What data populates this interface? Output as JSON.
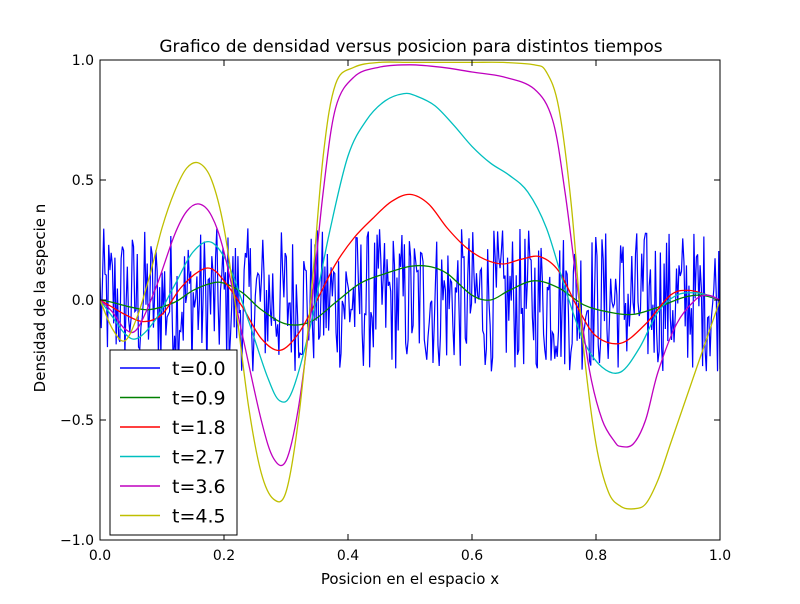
{
  "chart_data": {
    "type": "line",
    "title": "Grafico de densidad versus posicion para distintos tiempos",
    "xlabel": "Posicion en el espacio x",
    "ylabel": "Densidad de la especie n",
    "xlim": [
      0.0,
      1.0
    ],
    "ylim": [
      -1.0,
      1.0
    ],
    "xticks": [
      "0.0",
      "0.2",
      "0.4",
      "0.6",
      "0.8",
      "1.0"
    ],
    "yticks": [
      "1.0",
      "0.5",
      "0.0",
      "−0.5",
      "−1.0"
    ],
    "grid": false,
    "legend_position": "lower-left",
    "noise_series": {
      "name": "t=0.0",
      "color": "#0000ff",
      "x_range": [
        0.0,
        1.0
      ],
      "points": 500,
      "amplitude_range": [
        -0.3,
        0.3
      ]
    },
    "series": [
      {
        "name": "t=0.9",
        "color": "#008000",
        "x": [
          0.0,
          0.02,
          0.05,
          0.08,
          0.12,
          0.15,
          0.18,
          0.2,
          0.23,
          0.26,
          0.3,
          0.34,
          0.38,
          0.42,
          0.46,
          0.5,
          0.53,
          0.56,
          0.6,
          0.63,
          0.66,
          0.7,
          0.74,
          0.78,
          0.82,
          0.86,
          0.9,
          0.94,
          0.97,
          1.0
        ],
        "values": [
          0.0,
          -0.01,
          -0.03,
          -0.04,
          -0.01,
          0.04,
          0.07,
          0.07,
          0.03,
          -0.04,
          -0.1,
          -0.09,
          -0.01,
          0.07,
          0.11,
          0.14,
          0.14,
          0.11,
          0.02,
          0.0,
          0.04,
          0.08,
          0.05,
          -0.02,
          -0.05,
          -0.06,
          -0.03,
          0.01,
          0.02,
          0.0
        ]
      },
      {
        "name": "t=1.8",
        "color": "#ff0000",
        "x": [
          0.0,
          0.02,
          0.04,
          0.07,
          0.1,
          0.13,
          0.16,
          0.18,
          0.2,
          0.23,
          0.26,
          0.29,
          0.32,
          0.35,
          0.38,
          0.41,
          0.44,
          0.47,
          0.5,
          0.53,
          0.56,
          0.59,
          0.62,
          0.65,
          0.68,
          0.71,
          0.74,
          0.77,
          0.8,
          0.84,
          0.88,
          0.92,
          0.95,
          0.98,
          1.0
        ],
        "values": [
          0.0,
          -0.03,
          -0.06,
          -0.09,
          -0.06,
          0.05,
          0.12,
          0.13,
          0.08,
          -0.03,
          -0.16,
          -0.21,
          -0.14,
          0.0,
          0.15,
          0.26,
          0.34,
          0.41,
          0.44,
          0.4,
          0.3,
          0.22,
          0.17,
          0.15,
          0.17,
          0.18,
          0.12,
          -0.03,
          -0.15,
          -0.18,
          -0.1,
          0.02,
          0.04,
          0.02,
          0.0
        ]
      },
      {
        "name": "t=2.7",
        "color": "#00bfbf",
        "x": [
          0.0,
          0.02,
          0.04,
          0.06,
          0.09,
          0.12,
          0.15,
          0.18,
          0.21,
          0.24,
          0.27,
          0.29,
          0.31,
          0.34,
          0.37,
          0.4,
          0.43,
          0.46,
          0.49,
          0.51,
          0.54,
          0.57,
          0.6,
          0.63,
          0.66,
          0.69,
          0.72,
          0.75,
          0.78,
          0.81,
          0.84,
          0.87,
          0.9,
          0.93,
          0.96,
          0.98,
          1.0
        ],
        "values": [
          0.0,
          -0.07,
          -0.14,
          -0.16,
          -0.08,
          0.06,
          0.2,
          0.24,
          0.13,
          -0.09,
          -0.32,
          -0.42,
          -0.38,
          -0.1,
          0.28,
          0.6,
          0.75,
          0.83,
          0.86,
          0.85,
          0.81,
          0.73,
          0.64,
          0.57,
          0.52,
          0.45,
          0.3,
          0.05,
          -0.17,
          -0.28,
          -0.3,
          -0.2,
          -0.05,
          0.02,
          0.03,
          0.02,
          0.0
        ]
      },
      {
        "name": "t=3.6",
        "color": "#bf00bf",
        "x": [
          0.0,
          0.02,
          0.04,
          0.06,
          0.09,
          0.12,
          0.14,
          0.16,
          0.18,
          0.2,
          0.23,
          0.26,
          0.28,
          0.3,
          0.32,
          0.34,
          0.36,
          0.38,
          0.41,
          0.45,
          0.5,
          0.55,
          0.6,
          0.65,
          0.7,
          0.73,
          0.75,
          0.77,
          0.79,
          0.81,
          0.83,
          0.84,
          0.86,
          0.88,
          0.9,
          0.93,
          0.96,
          0.98,
          1.0
        ],
        "values": [
          0.0,
          -0.05,
          -0.12,
          -0.12,
          0.05,
          0.27,
          0.37,
          0.4,
          0.35,
          0.2,
          -0.15,
          -0.5,
          -0.66,
          -0.67,
          -0.45,
          -0.05,
          0.45,
          0.8,
          0.93,
          0.97,
          0.98,
          0.97,
          0.95,
          0.93,
          0.88,
          0.75,
          0.45,
          0.05,
          -0.3,
          -0.5,
          -0.59,
          -0.61,
          -0.6,
          -0.5,
          -0.3,
          -0.1,
          0.0,
          0.02,
          0.0
        ]
      },
      {
        "name": "t=4.5",
        "color": "#bfbf00",
        "x": [
          0.0,
          0.02,
          0.04,
          0.06,
          0.08,
          0.1,
          0.12,
          0.14,
          0.16,
          0.18,
          0.2,
          0.22,
          0.24,
          0.26,
          0.28,
          0.3,
          0.32,
          0.34,
          0.36,
          0.38,
          0.41,
          0.45,
          0.5,
          0.55,
          0.6,
          0.65,
          0.7,
          0.72,
          0.74,
          0.76,
          0.78,
          0.8,
          0.82,
          0.84,
          0.86,
          0.88,
          0.9,
          0.92,
          0.94,
          0.96,
          0.98,
          1.0
        ],
        "values": [
          0.0,
          -0.12,
          -0.17,
          -0.07,
          0.1,
          0.3,
          0.45,
          0.55,
          0.57,
          0.5,
          0.3,
          -0.05,
          -0.45,
          -0.72,
          -0.83,
          -0.8,
          -0.5,
          0.0,
          0.6,
          0.9,
          0.97,
          0.99,
          0.99,
          0.99,
          0.99,
          0.99,
          0.98,
          0.95,
          0.8,
          0.4,
          -0.2,
          -0.6,
          -0.8,
          -0.86,
          -0.87,
          -0.85,
          -0.75,
          -0.6,
          -0.45,
          -0.3,
          -0.15,
          0.0
        ]
      }
    ]
  }
}
